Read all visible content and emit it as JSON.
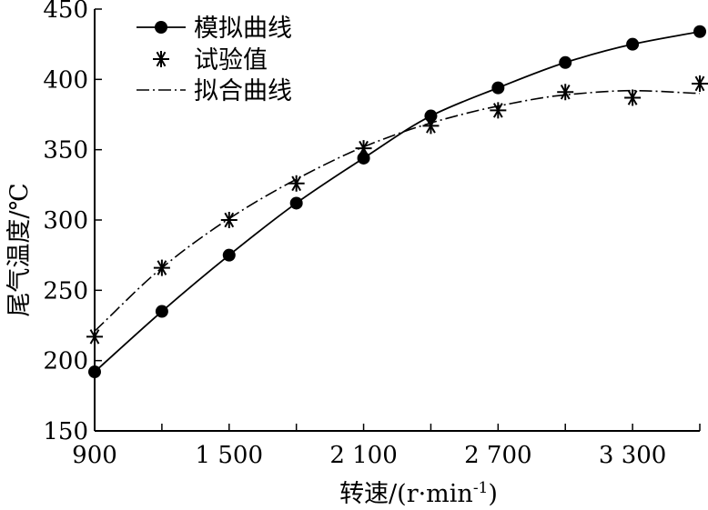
{
  "chart_data": {
    "type": "line",
    "title": "",
    "xlabel": "转速/(r·min",
    "xlabel_sup": "-1",
    "xlabel_close": ")",
    "ylabel": "尾气温度/℃",
    "xlim": [
      900,
      3600
    ],
    "ylim": [
      150,
      450
    ],
    "xticks": [
      900,
      1200,
      1500,
      1800,
      2100,
      2400,
      2700,
      3000,
      3300,
      3600
    ],
    "xtick_labels": [
      "900",
      "",
      "1 500",
      "",
      "2 100",
      "",
      "2 700",
      "",
      "3 300",
      ""
    ],
    "yticks": [
      150,
      200,
      250,
      300,
      350,
      400,
      450
    ],
    "ytick_labels": [
      "150",
      "200",
      "250",
      "300",
      "350",
      "400",
      "450"
    ],
    "legend_position": "top-left",
    "series": [
      {
        "name": "模拟曲线",
        "style": "solid-line-with-filled-circles",
        "x": [
          900,
          1200,
          1500,
          1800,
          2100,
          2400,
          2700,
          3000,
          3300,
          3600
        ],
        "y": [
          192,
          235,
          275,
          312,
          344,
          374,
          394,
          412,
          425,
          434
        ]
      },
      {
        "name": "试验值",
        "style": "asterisk-markers",
        "x": [
          900,
          1200,
          1500,
          1800,
          2100,
          2400,
          2700,
          3000,
          3300,
          3600
        ],
        "y": [
          217,
          266,
          300,
          326,
          351,
          367,
          378,
          391,
          387,
          397
        ]
      },
      {
        "name": "拟合曲线",
        "style": "dash-dot-line",
        "x": [
          900,
          1200,
          1500,
          1800,
          2100,
          2400,
          2700,
          3000,
          3300,
          3600
        ],
        "y": [
          221,
          266,
          301,
          329,
          352,
          369,
          381,
          389,
          392,
          390
        ]
      }
    ]
  }
}
